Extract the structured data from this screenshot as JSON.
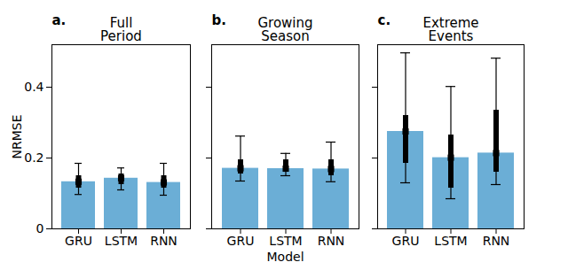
{
  "chart_data": [
    {
      "type": "bar",
      "label": "a.",
      "title": "Full Period",
      "y_label": "NRMSE",
      "categories": [
        "GRU",
        "LSTM",
        "RNN"
      ],
      "values": [
        0.133,
        0.143,
        0.131
      ],
      "color": "#6baed6",
      "whisker_low": [
        0.097,
        0.11,
        0.095
      ],
      "whisker_high": [
        0.185,
        0.172,
        0.185
      ],
      "box_low": [
        0.115,
        0.125,
        0.115
      ],
      "box_high": [
        0.15,
        0.155,
        0.15
      ],
      "ylim": [
        0,
        0.52
      ],
      "yticks": [
        0,
        0.2,
        0.4
      ]
    },
    {
      "type": "bar",
      "label": "b.",
      "title": "Growing Season",
      "x_label": "Model",
      "categories": [
        "GRU",
        "LSTM",
        "RNN"
      ],
      "values": [
        0.171,
        0.17,
        0.169
      ],
      "color": "#6baed6",
      "whisker_low": [
        0.135,
        0.15,
        0.133
      ],
      "whisker_high": [
        0.262,
        0.213,
        0.245
      ],
      "box_low": [
        0.155,
        0.16,
        0.15
      ],
      "box_high": [
        0.195,
        0.195,
        0.195
      ],
      "ylim": [
        0,
        0.52
      ],
      "yticks": [
        0,
        0.2,
        0.4
      ],
      "tick_labels": "x"
    },
    {
      "type": "bar",
      "label": "c.",
      "title": "Extreme Events",
      "categories": [
        "GRU",
        "LSTM",
        "RNN"
      ],
      "values": [
        0.275,
        0.201,
        0.214
      ],
      "color": "#6baed6",
      "whisker_low": [
        0.13,
        0.085,
        0.125
      ],
      "whisker_high": [
        0.497,
        0.402,
        0.482
      ],
      "box_low": [
        0.185,
        0.115,
        0.16
      ],
      "box_high": [
        0.32,
        0.265,
        0.335
      ],
      "ylim": [
        0,
        0.52
      ],
      "yticks": [
        0,
        0.2,
        0.4
      ],
      "tick_labels": "x"
    }
  ]
}
